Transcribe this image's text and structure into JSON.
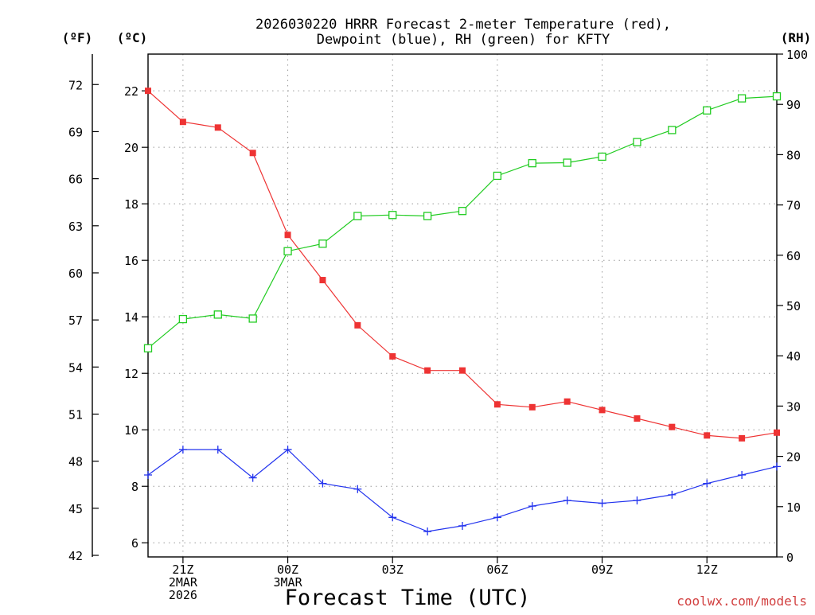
{
  "chart_data": {
    "type": "line",
    "title_line1": "2026030220 HRRR Forecast 2-meter Temperature (red),",
    "title_line2": "Dewpoint (blue), RH (green) for KFTY",
    "xlabel": "Forecast Time (UTC)",
    "credit": "coolwx.com/models",
    "unit_f": "(ºF)",
    "unit_c": "(ºC)",
    "unit_rh": "(RH)",
    "x_hours": [
      20,
      21,
      22,
      23,
      24,
      25,
      26,
      27,
      28,
      29,
      30,
      31,
      32,
      33,
      34,
      35,
      36,
      37,
      38
    ],
    "xlim": [
      20,
      38
    ],
    "x_ticks": [
      {
        "hour": 21,
        "lines": [
          "21Z",
          "2MAR",
          "2026"
        ]
      },
      {
        "hour": 24,
        "lines": [
          "00Z",
          "3MAR"
        ]
      },
      {
        "hour": 27,
        "lines": [
          "03Z"
        ]
      },
      {
        "hour": 30,
        "lines": [
          "06Z"
        ]
      },
      {
        "hour": 33,
        "lines": [
          "09Z"
        ]
      },
      {
        "hour": 36,
        "lines": [
          "12Z"
        ]
      }
    ],
    "ylim_c": [
      5.5,
      23.3
    ],
    "y_ticks_c": [
      6,
      8,
      10,
      12,
      14,
      16,
      18,
      20,
      22
    ],
    "y_ticks_f": [
      42,
      45,
      48,
      51,
      54,
      57,
      60,
      63,
      66,
      69,
      72
    ],
    "ylim_rh": [
      0,
      100
    ],
    "y_ticks_rh": [
      0,
      10,
      20,
      30,
      40,
      50,
      60,
      70,
      80,
      90,
      100
    ],
    "series": [
      {
        "name": "Temperature",
        "axis": "C",
        "color": "#ee3333",
        "marker": "filled-square",
        "values": [
          22.0,
          20.9,
          20.7,
          19.8,
          16.9,
          15.3,
          13.7,
          12.6,
          12.1,
          12.1,
          10.9,
          10.8,
          11.0,
          10.7,
          10.4,
          10.1,
          9.8,
          9.7,
          9.9
        ]
      },
      {
        "name": "Dewpoint",
        "axis": "C",
        "color": "#2233ee",
        "marker": "plus",
        "values": [
          8.4,
          9.3,
          9.3,
          8.3,
          9.3,
          8.1,
          7.9,
          6.9,
          6.4,
          6.6,
          6.9,
          7.3,
          7.5,
          7.4,
          7.5,
          7.7,
          8.1,
          8.4,
          8.7
        ]
      },
      {
        "name": "RH",
        "axis": "RH",
        "color": "#22cc22",
        "marker": "open-square",
        "values": [
          41.5,
          47.3,
          48.2,
          47.4,
          60.8,
          62.3,
          67.8,
          68.0,
          67.8,
          68.8,
          75.8,
          78.3,
          78.4,
          79.6,
          82.5,
          84.9,
          88.8,
          91.2,
          91.6
        ]
      }
    ]
  }
}
